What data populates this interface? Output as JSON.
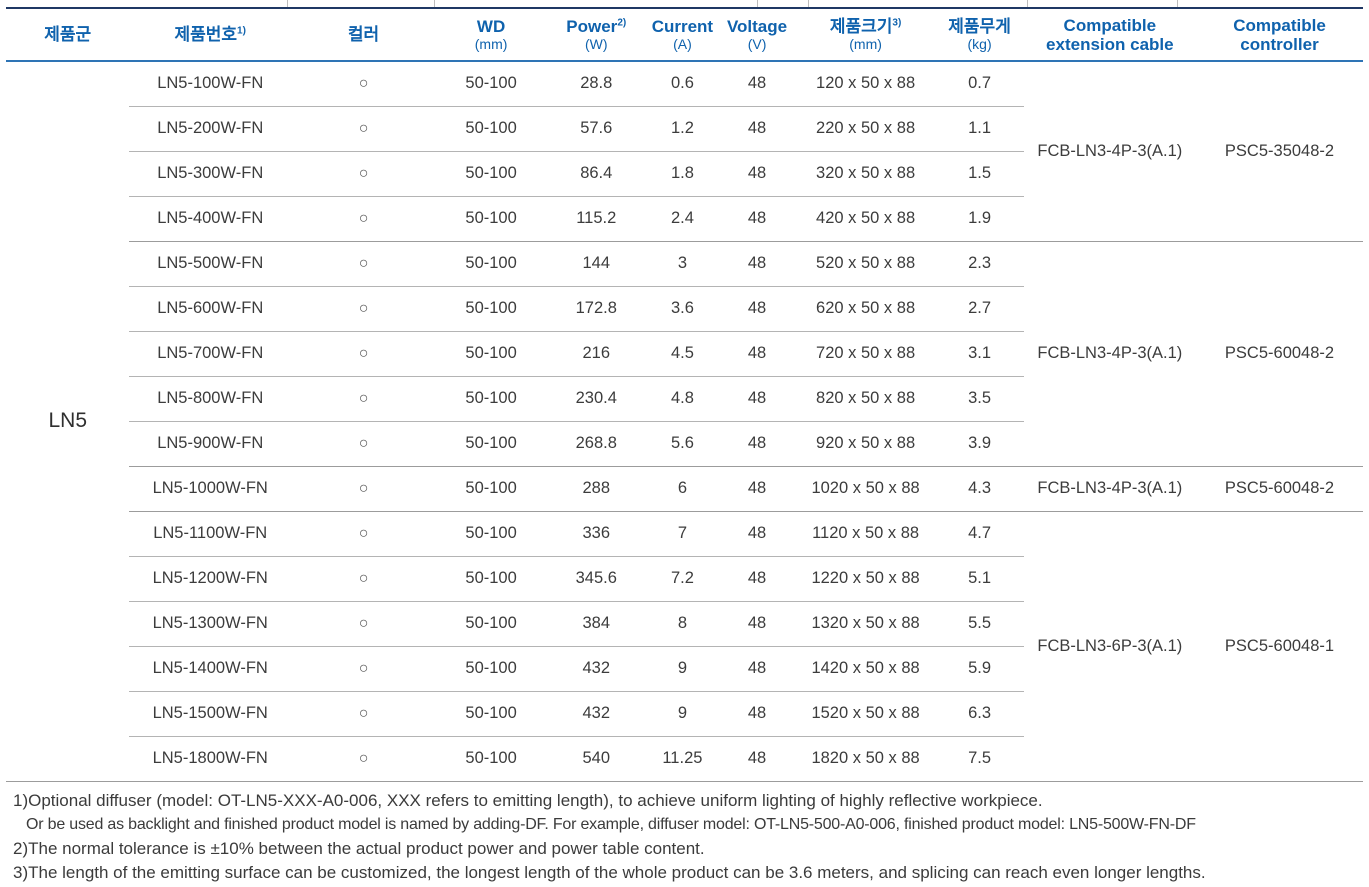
{
  "colors": {
    "header_text": "#0f62ad",
    "top_border": "#1f3864",
    "header_border": "#2e74b5",
    "row_line": "#b4b4b4",
    "group_line": "#9c9c9c",
    "text": "#3c3c3c"
  },
  "table": {
    "family": "LN5",
    "headers": [
      {
        "main": "제품군"
      },
      {
        "main": "제품번호",
        "sup": "1)"
      },
      {
        "main": "컬러"
      },
      {
        "main": "WD",
        "unit": "(mm)"
      },
      {
        "main": "Power",
        "sup": "2)",
        "unit": "(W)"
      },
      {
        "main": "Current",
        "unit": "(A)"
      },
      {
        "main": "Voltage",
        "unit": "(V)"
      },
      {
        "main": "제품크기",
        "sup": "3)",
        "unit": "(mm)"
      },
      {
        "main": "제품무게",
        "unit": "(kg)"
      },
      {
        "main": "Compatible",
        "line2": "extension cable"
      },
      {
        "main": "Compatible",
        "line2": "controller"
      }
    ],
    "rows": [
      {
        "model": "LN5-100W-FN",
        "color": "○",
        "wd": "50-100",
        "power": "28.8",
        "current": "0.6",
        "voltage": "48",
        "size": "120 x 50 x 88",
        "weight": "0.7"
      },
      {
        "model": "LN5-200W-FN",
        "color": "○",
        "wd": "50-100",
        "power": "57.6",
        "current": "1.2",
        "voltage": "48",
        "size": "220 x 50 x 88",
        "weight": "1.1"
      },
      {
        "model": "LN5-300W-FN",
        "color": "○",
        "wd": "50-100",
        "power": "86.4",
        "current": "1.8",
        "voltage": "48",
        "size": "320 x 50 x 88",
        "weight": "1.5"
      },
      {
        "model": "LN5-400W-FN",
        "color": "○",
        "wd": "50-100",
        "power": "115.2",
        "current": "2.4",
        "voltage": "48",
        "size": "420 x 50 x 88",
        "weight": "1.9"
      },
      {
        "model": "LN5-500W-FN",
        "color": "○",
        "wd": "50-100",
        "power": "144",
        "current": "3",
        "voltage": "48",
        "size": "520 x 50 x 88",
        "weight": "2.3"
      },
      {
        "model": "LN5-600W-FN",
        "color": "○",
        "wd": "50-100",
        "power": "172.8",
        "current": "3.6",
        "voltage": "48",
        "size": "620 x 50 x 88",
        "weight": "2.7"
      },
      {
        "model": "LN5-700W-FN",
        "color": "○",
        "wd": "50-100",
        "power": "216",
        "current": "4.5",
        "voltage": "48",
        "size": "720 x 50 x 88",
        "weight": "3.1"
      },
      {
        "model": "LN5-800W-FN",
        "color": "○",
        "wd": "50-100",
        "power": "230.4",
        "current": "4.8",
        "voltage": "48",
        "size": "820 x 50 x 88",
        "weight": "3.5"
      },
      {
        "model": "LN5-900W-FN",
        "color": "○",
        "wd": "50-100",
        "power": "268.8",
        "current": "5.6",
        "voltage": "48",
        "size": "920 x 50 x 88",
        "weight": "3.9"
      },
      {
        "model": "LN5-1000W-FN",
        "color": "○",
        "wd": "50-100",
        "power": "288",
        "current": "6",
        "voltage": "48",
        "size": "1020 x 50 x 88",
        "weight": "4.3"
      },
      {
        "model": "LN5-1100W-FN",
        "color": "○",
        "wd": "50-100",
        "power": "336",
        "current": "7",
        "voltage": "48",
        "size": "1120 x 50 x 88",
        "weight": "4.7"
      },
      {
        "model": "LN5-1200W-FN",
        "color": "○",
        "wd": "50-100",
        "power": "345.6",
        "current": "7.2",
        "voltage": "48",
        "size": "1220 x 50 x 88",
        "weight": "5.1"
      },
      {
        "model": "LN5-1300W-FN",
        "color": "○",
        "wd": "50-100",
        "power": "384",
        "current": "8",
        "voltage": "48",
        "size": "1320 x 50 x 88",
        "weight": "5.5"
      },
      {
        "model": "LN5-1400W-FN",
        "color": "○",
        "wd": "50-100",
        "power": "432",
        "current": "9",
        "voltage": "48",
        "size": "1420 x 50 x 88",
        "weight": "5.9"
      },
      {
        "model": "LN5-1500W-FN",
        "color": "○",
        "wd": "50-100",
        "power": "432",
        "current": "9",
        "voltage": "48",
        "size": "1520 x 50 x 88",
        "weight": "6.3"
      },
      {
        "model": "LN5-1800W-FN",
        "color": "○",
        "wd": "50-100",
        "power": "540",
        "current": "11.25",
        "voltage": "48",
        "size": "1820 x 50 x 88",
        "weight": "7.5"
      }
    ],
    "groups": [
      {
        "start": 0,
        "span": 4,
        "cable": "FCB-LN3-4P-3(A.1)",
        "controller": "PSC5-35048-2"
      },
      {
        "start": 4,
        "span": 5,
        "cable": "FCB-LN3-4P-3(A.1)",
        "controller": "PSC5-60048-2"
      },
      {
        "start": 9,
        "span": 1,
        "cable": "FCB-LN3-4P-3(A.1)",
        "controller": "PSC5-60048-2"
      },
      {
        "start": 10,
        "span": 6,
        "cable": "FCB-LN3-6P-3(A.1)",
        "controller": "PSC5-60048-1"
      }
    ]
  },
  "footnotes": [
    {
      "text": "1)Optional diffuser (model: OT-LN5-XXX-A0-006, XXX refers to emitting length), to achieve uniform lighting of highly reflective workpiece.",
      "indent": false
    },
    {
      "text": "Or be used as backlight and finished product model is named by adding-DF. For example, diffuser model: OT-LN5-500-A0-006, finished product model: LN5-500W-FN-DF",
      "indent": true
    },
    {
      "text": "2)The normal tolerance is ±10% between the actual product power and power table content.",
      "indent": false
    },
    {
      "text": "3)The length of the emitting surface can be customized, the longest length of the whole product can be 3.6 meters, and splicing can reach even longer lengths.",
      "indent": false
    }
  ]
}
